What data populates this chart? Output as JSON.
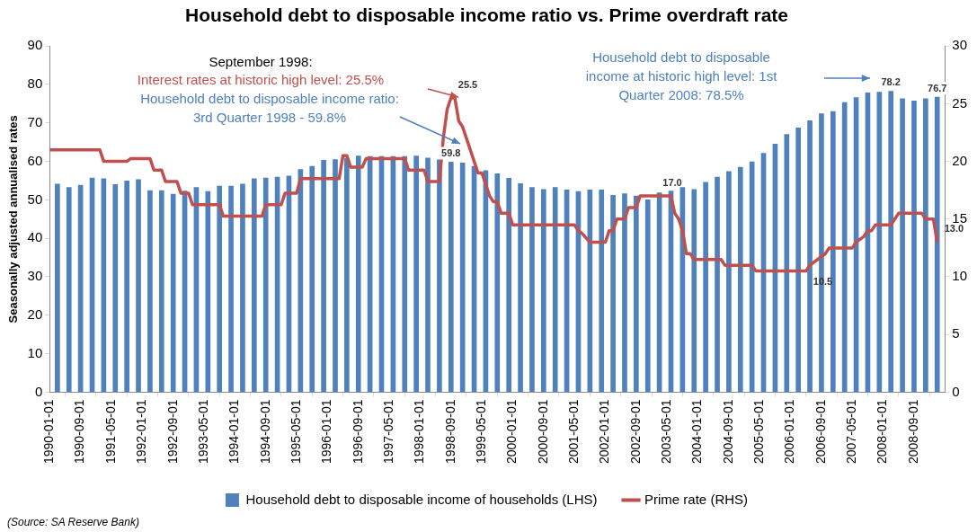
{
  "chart_data": {
    "type": "bar",
    "title": "Household debt to disposable income ratio vs. Prime overdraft rate",
    "ylabel": "Seasonally adjusted annualised rates",
    "xlim": [
      "1990-01",
      "2009-05"
    ],
    "xticks": [
      {
        "value": "1990-01",
        "label": "1990-01-01"
      },
      {
        "value": "1990-09",
        "label": "1990-09-01"
      },
      {
        "value": "1991-05",
        "label": "1991-05-01"
      },
      {
        "value": "1992-01",
        "label": "1992-01-01"
      },
      {
        "value": "1992-09",
        "label": "1992-09-01"
      },
      {
        "value": "1993-05",
        "label": "1993-05-01"
      },
      {
        "value": "1994-01",
        "label": "1994-01-01"
      },
      {
        "value": "1994-09",
        "label": "1994-09-01"
      },
      {
        "value": "1995-05",
        "label": "1995-05-01"
      },
      {
        "value": "1996-01",
        "label": "1996-01-01"
      },
      {
        "value": "1996-09",
        "label": "1996-09-01"
      },
      {
        "value": "1997-05",
        "label": "1997-05-01"
      },
      {
        "value": "1998-01",
        "label": "1998-01-01"
      },
      {
        "value": "1998-09",
        "label": "1998-09-01"
      },
      {
        "value": "1999-05",
        "label": "1999-05-01"
      },
      {
        "value": "2000-01",
        "label": "2000-01-01"
      },
      {
        "value": "2000-09",
        "label": "2000-09-01"
      },
      {
        "value": "2001-05",
        "label": "2001-05-01"
      },
      {
        "value": "2002-01",
        "label": "2002-01-01"
      },
      {
        "value": "2002-09",
        "label": "2002-09-01"
      },
      {
        "value": "2003-05",
        "label": "2003-05-01"
      },
      {
        "value": "2004-01",
        "label": "2004-01-01"
      },
      {
        "value": "2004-09",
        "label": "2004-09-01"
      },
      {
        "value": "2005-05",
        "label": "2005-05-01"
      },
      {
        "value": "2006-01",
        "label": "2006-01-01"
      },
      {
        "value": "2006-09",
        "label": "2006-09-01"
      },
      {
        "value": "2007-05",
        "label": "2007-05-01"
      },
      {
        "value": "2008-01",
        "label": "2008-01-01"
      },
      {
        "value": "2008-09",
        "label": "2008-09-01"
      }
    ],
    "ylim": [
      0,
      90
    ],
    "yticks": [
      0,
      10,
      20,
      30,
      40,
      50,
      60,
      70,
      80,
      90
    ],
    "y2lim": [
      0,
      30
    ],
    "y2ticks": [
      0,
      5,
      10,
      15,
      20,
      25,
      30
    ],
    "legend": "bottom",
    "marker": "none",
    "series": [
      {
        "name": "Household debt to disposable income of households (LHS)",
        "color": "#4f81bd",
        "x": [
          "1990-03",
          "1990-06",
          "1990-09",
          "1990-12",
          "1991-03",
          "1991-06",
          "1991-09",
          "1991-12",
          "1992-03",
          "1992-06",
          "1992-09",
          "1992-12",
          "1993-03",
          "1993-06",
          "1993-09",
          "1993-12",
          "1994-03",
          "1994-06",
          "1994-09",
          "1994-12",
          "1995-03",
          "1995-06",
          "1995-09",
          "1995-12",
          "1996-03",
          "1996-06",
          "1996-09",
          "1996-12",
          "1997-03",
          "1997-06",
          "1997-09",
          "1997-12",
          "1998-03",
          "1998-06",
          "1998-09",
          "1998-12",
          "1999-03",
          "1999-06",
          "1999-09",
          "1999-12",
          "2000-03",
          "2000-06",
          "2000-09",
          "2000-12",
          "2001-03",
          "2001-06",
          "2001-09",
          "2001-12",
          "2002-03",
          "2002-06",
          "2002-09",
          "2002-12",
          "2003-03",
          "2003-06",
          "2003-09",
          "2003-12",
          "2004-03",
          "2004-06",
          "2004-09",
          "2004-12",
          "2005-03",
          "2005-06",
          "2005-09",
          "2005-12",
          "2006-03",
          "2006-06",
          "2006-09",
          "2006-12",
          "2007-03",
          "2007-06",
          "2007-09",
          "2007-12",
          "2008-03",
          "2008-06",
          "2008-09",
          "2008-12",
          "2009-03"
        ],
        "values": [
          54.1,
          53.2,
          53.8,
          55.7,
          55.5,
          54.0,
          54.9,
          55.3,
          52.4,
          52.4,
          51.5,
          52.3,
          53.2,
          52.2,
          53.6,
          53.6,
          54.1,
          55.5,
          55.7,
          55.9,
          56.2,
          57.9,
          58.7,
          60.3,
          60.5,
          60.8,
          61.4,
          61.3,
          61.3,
          61.3,
          61.3,
          61.4,
          60.9,
          60.4,
          59.8,
          59.6,
          58.7,
          57.6,
          56.8,
          55.6,
          54.2,
          53.2,
          52.7,
          53.2,
          52.6,
          52.2,
          52.6,
          52.6,
          51.2,
          51.6,
          51.0,
          50.0,
          51.8,
          52.3,
          53.2,
          52.7,
          54.6,
          55.9,
          57.4,
          58.5,
          59.9,
          62.1,
          64.5,
          67.0,
          68.7,
          70.6,
          72.4,
          73.0,
          75.3,
          76.6,
          77.8,
          78.0,
          78.2,
          76.3,
          75.7,
          76.3,
          76.7
        ],
        "value_labels": [
          null,
          null,
          null,
          null,
          null,
          null,
          null,
          null,
          null,
          null,
          null,
          null,
          null,
          null,
          null,
          null,
          null,
          null,
          null,
          null,
          null,
          null,
          null,
          null,
          null,
          null,
          null,
          null,
          null,
          null,
          null,
          null,
          null,
          null,
          "59.8",
          null,
          null,
          null,
          null,
          null,
          null,
          null,
          null,
          null,
          null,
          null,
          null,
          null,
          null,
          null,
          null,
          null,
          null,
          null,
          null,
          null,
          null,
          null,
          null,
          null,
          null,
          null,
          null,
          null,
          null,
          null,
          null,
          null,
          null,
          null,
          null,
          null,
          "78.2",
          null,
          null,
          null,
          "76.7"
        ]
      },
      {
        "type": "line",
        "name": "Prime rate (RHS)",
        "color": "#c0504d",
        "axis": "y2",
        "x": [
          "1990-01",
          "1991-02",
          "1991-03",
          "1991-09",
          "1991-10",
          "1992-03",
          "1992-04",
          "1992-06",
          "1992-07",
          "1992-10",
          "1992-11",
          "1993-01",
          "1993-02",
          "1993-09",
          "1993-10",
          "1994-08",
          "1994-09",
          "1995-01",
          "1995-02",
          "1995-05",
          "1995-06",
          "1996-04",
          "1996-05",
          "1996-06",
          "1996-07",
          "1996-10",
          "1996-11",
          "1997-09",
          "1997-10",
          "1998-02",
          "1998-03",
          "1998-06",
          "1998-07",
          "1998-08",
          "1998-09",
          "1998-10",
          "1998-11",
          "1998-12",
          "1999-01",
          "1999-02",
          "1999-03",
          "1999-04",
          "1999-05",
          "1999-06",
          "1999-07",
          "1999-08",
          "1999-09",
          "1999-10",
          "1999-12",
          "2000-01",
          "2001-05",
          "2001-06",
          "2001-07",
          "2001-09",
          "2002-01",
          "2002-02",
          "2002-03",
          "2002-04",
          "2002-06",
          "2002-07",
          "2002-09",
          "2002-10",
          "2003-02",
          "2003-06",
          "2003-07",
          "2003-08",
          "2003-09",
          "2003-10",
          "2003-11",
          "2003-12",
          "2004-07",
          "2004-08",
          "2005-03",
          "2005-04",
          "2006-05",
          "2006-06",
          "2006-08",
          "2006-10",
          "2006-11",
          "2007-05",
          "2007-06",
          "2007-08",
          "2007-09",
          "2007-10",
          "2007-11",
          "2008-03",
          "2008-04",
          "2008-05",
          "2008-11",
          "2008-12",
          "2009-02",
          "2009-03"
        ],
        "values": [
          21.0,
          21.0,
          20.0,
          20.0,
          20.25,
          20.25,
          19.25,
          19.25,
          18.25,
          18.25,
          17.25,
          17.25,
          16.25,
          16.25,
          15.25,
          15.25,
          16.25,
          16.25,
          17.25,
          17.25,
          18.5,
          18.5,
          20.5,
          20.5,
          19.5,
          19.5,
          20.25,
          20.25,
          19.25,
          19.25,
          18.25,
          18.25,
          22.0,
          24.5,
          25.5,
          25.5,
          23.5,
          23.0,
          22.0,
          21.0,
          20.0,
          19.0,
          19.0,
          18.0,
          17.0,
          16.5,
          16.5,
          15.5,
          15.5,
          14.5,
          14.5,
          14.0,
          13.75,
          13.0,
          13.0,
          14.0,
          14.0,
          15.0,
          15.0,
          16.0,
          16.0,
          17.0,
          17.0,
          17.0,
          15.5,
          15.0,
          14.0,
          12.0,
          12.0,
          11.5,
          11.5,
          11.0,
          11.0,
          10.5,
          10.5,
          11.0,
          11.5,
          12.0,
          12.5,
          12.5,
          13.0,
          13.5,
          14.0,
          14.0,
          14.5,
          14.5,
          15.0,
          15.5,
          15.5,
          15.0,
          15.0,
          13.0
        ],
        "value_labels": [
          null,
          null,
          null,
          null,
          null,
          null,
          null,
          null,
          null,
          null,
          null,
          null,
          null,
          null,
          null,
          null,
          null,
          null,
          null,
          null,
          null,
          null,
          null,
          null,
          null,
          null,
          null,
          null,
          null,
          null,
          null,
          null,
          null,
          null,
          "25.5",
          null,
          null,
          null,
          null,
          null,
          null,
          null,
          null,
          null,
          null,
          null,
          null,
          null,
          null,
          null,
          null,
          null,
          null,
          null,
          null,
          null,
          null,
          null,
          null,
          null,
          null,
          null,
          "17.0",
          null,
          null,
          null,
          null,
          null,
          null,
          null,
          null,
          null,
          null,
          null,
          "10.5",
          null,
          null,
          null,
          null,
          null,
          null,
          null,
          null,
          null,
          null,
          null,
          null,
          null,
          null,
          null,
          null,
          "13.0"
        ]
      }
    ],
    "annotations": [
      "September 1998:",
      "Interest rates at historic high level: 25.5%",
      "Household debt to disposable income ratio: 3rd Quarter 1998 - 59.8%",
      "Household debt to disposable income at historic high level: 1st Quarter 2008: 78.5%",
      "(Source: SA Reserve Bank)"
    ]
  }
}
